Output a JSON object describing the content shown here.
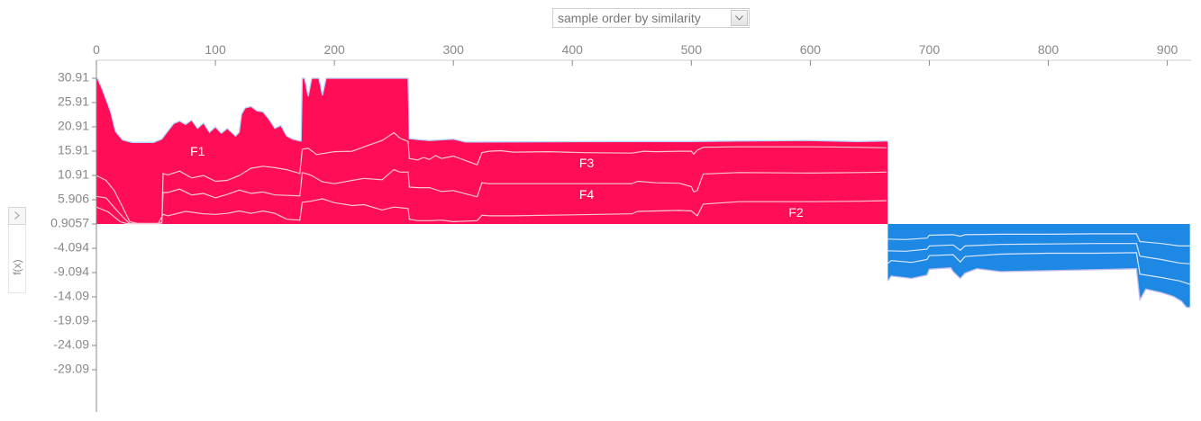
{
  "controls": {
    "sort_select": {
      "value": "sample order by similarity",
      "icon": "chevron-down-icon"
    },
    "side_toggle_icon": "chevron-right-icon",
    "output_label": "f(x)"
  },
  "chart_data": {
    "type": "area",
    "subtype": "stacked additive force plot",
    "title": "",
    "xlabel": "",
    "ylabel": "f(x)",
    "xlim": [
      0,
      920
    ],
    "ylim": [
      -34.09,
      30.91
    ],
    "grid": false,
    "x_ticks": [
      0,
      100,
      200,
      300,
      400,
      500,
      600,
      700,
      800,
      900
    ],
    "y_ticks": [
      "30.91",
      "25.91",
      "20.91",
      "15.91",
      "10.91",
      "5.906",
      "0.9057",
      "-4.094",
      "-9.094",
      "-14.09",
      "-19.09",
      "-24.09",
      "-29.09"
    ],
    "base_value": 0.9057,
    "colors": {
      "positive": "#ff0d57",
      "negative": "#1e88e5",
      "upper_edge": "#b7d6ff",
      "lower_edge": "#c5bce8",
      "separator": "#f8c5d3",
      "blue_separator": "#d8e6fb",
      "axis": "#888888"
    },
    "series_labels": [
      {
        "name": "F1",
        "x": 85,
        "y": 15.7
      },
      {
        "name": "F3",
        "x": 412,
        "y": 13.3
      },
      {
        "name": "F4",
        "x": 412,
        "y": 6.8
      },
      {
        "name": "F2",
        "x": 588,
        "y": 3.1
      }
    ],
    "output_curve": [
      [
        0,
        30.9
      ],
      [
        1,
        30.9
      ],
      [
        5,
        28.6
      ],
      [
        12,
        24.0
      ],
      [
        16,
        20.0
      ],
      [
        22,
        18.2
      ],
      [
        30,
        17.7
      ],
      [
        48,
        17.7
      ],
      [
        55,
        18.4
      ],
      [
        60,
        20.0
      ],
      [
        65,
        21.6
      ],
      [
        70,
        22.1
      ],
      [
        75,
        21.4
      ],
      [
        80,
        22.3
      ],
      [
        85,
        20.6
      ],
      [
        90,
        21.7
      ],
      [
        95,
        19.8
      ],
      [
        100,
        20.9
      ],
      [
        105,
        19.6
      ],
      [
        110,
        20.6
      ],
      [
        117,
        19.0
      ],
      [
        120,
        19.8
      ],
      [
        122,
        23.5
      ],
      [
        125,
        24.8
      ],
      [
        130,
        25.1
      ],
      [
        135,
        24.2
      ],
      [
        140,
        24.0
      ],
      [
        145,
        22.5
      ],
      [
        150,
        20.6
      ],
      [
        155,
        21.2
      ],
      [
        160,
        19.0
      ],
      [
        165,
        18.4
      ],
      [
        171,
        18.0
      ],
      [
        172,
        18.0
      ],
      [
        173,
        30.91
      ],
      [
        175,
        30.91
      ],
      [
        178,
        27.2
      ],
      [
        181,
        30.91
      ],
      [
        187,
        30.91
      ],
      [
        190,
        27.4
      ],
      [
        193,
        30.91
      ],
      [
        262,
        30.91
      ],
      [
        263,
        18.5
      ],
      [
        270,
        18.3
      ],
      [
        280,
        18.1
      ],
      [
        300,
        18.4
      ],
      [
        310,
        17.8
      ],
      [
        320,
        17.8
      ],
      [
        460,
        17.9
      ],
      [
        500,
        17.9
      ],
      [
        540,
        18.0
      ],
      [
        600,
        18.1
      ],
      [
        640,
        17.9
      ],
      [
        664,
        18.0
      ],
      [
        665,
        18.0
      ],
      [
        665.1,
        -10.8
      ],
      [
        668,
        -9.8
      ],
      [
        685,
        -10.3
      ],
      [
        698,
        -9.6
      ],
      [
        700,
        -8.4
      ],
      [
        718,
        -8.1
      ],
      [
        720,
        -8.9
      ],
      [
        726,
        -10.3
      ],
      [
        730,
        -9.2
      ],
      [
        740,
        -8.3
      ],
      [
        760,
        -8.9
      ],
      [
        800,
        -8.7
      ],
      [
        840,
        -8.5
      ],
      [
        874,
        -8.3
      ],
      [
        877,
        -14.7
      ],
      [
        882,
        -12.5
      ],
      [
        895,
        -13.2
      ],
      [
        905,
        -14.0
      ],
      [
        912,
        -15.0
      ],
      [
        916,
        -16.2
      ],
      [
        918,
        -16.3
      ],
      [
        919,
        -16.2
      ]
    ],
    "feature_boundaries": [
      {
        "name": "F3/F1",
        "points": [
          [
            0,
            10.9
          ],
          [
            8,
            9.9
          ],
          [
            15,
            7.8
          ],
          [
            22,
            4.4
          ],
          [
            28,
            1.4
          ],
          [
            35,
            1.0
          ],
          [
            52,
            1.0
          ],
          [
            55,
            1.2
          ],
          [
            56,
            11.3
          ],
          [
            60,
            11.0
          ],
          [
            70,
            11.8
          ],
          [
            80,
            10.4
          ],
          [
            90,
            10.9
          ],
          [
            100,
            9.7
          ],
          [
            110,
            9.9
          ],
          [
            120,
            10.9
          ],
          [
            130,
            12.4
          ],
          [
            140,
            12.8
          ],
          [
            150,
            12.5
          ],
          [
            160,
            12.1
          ],
          [
            171,
            11.3
          ],
          [
            173,
            16.3
          ],
          [
            178,
            16.5
          ],
          [
            185,
            15.2
          ],
          [
            200,
            15.8
          ],
          [
            215,
            15.9
          ],
          [
            225,
            16.8
          ],
          [
            240,
            18.1
          ],
          [
            250,
            19.7
          ],
          [
            255,
            18.6
          ],
          [
            262,
            17.9
          ],
          [
            263,
            14.4
          ],
          [
            270,
            14.1
          ],
          [
            275,
            14.6
          ],
          [
            280,
            14.2
          ],
          [
            285,
            15.0
          ],
          [
            290,
            14.4
          ],
          [
            300,
            14.9
          ],
          [
            320,
            13.1
          ],
          [
            324,
            15.6
          ],
          [
            330,
            15.9
          ],
          [
            340,
            16.0
          ],
          [
            350,
            15.7
          ],
          [
            380,
            15.8
          ],
          [
            410,
            15.6
          ],
          [
            450,
            15.5
          ],
          [
            460,
            15.9
          ],
          [
            470,
            15.8
          ],
          [
            490,
            15.9
          ],
          [
            500,
            15.9
          ],
          [
            502,
            15.3
          ],
          [
            505,
            16.1
          ],
          [
            510,
            16.7
          ],
          [
            540,
            16.8
          ],
          [
            600,
            16.8
          ],
          [
            640,
            16.7
          ],
          [
            664,
            16.6
          ]
        ]
      },
      {
        "name": "F4/F3",
        "points": [
          [
            0,
            6.6
          ],
          [
            8,
            6.3
          ],
          [
            15,
            4.3
          ],
          [
            22,
            2.4
          ],
          [
            28,
            1.0
          ],
          [
            50,
            1.0
          ],
          [
            55,
            1.1
          ],
          [
            56,
            7.4
          ],
          [
            60,
            7.4
          ],
          [
            70,
            8.1
          ],
          [
            80,
            6.9
          ],
          [
            90,
            7.2
          ],
          [
            100,
            6.3
          ],
          [
            110,
            7.0
          ],
          [
            120,
            7.9
          ],
          [
            130,
            7.2
          ],
          [
            140,
            7.5
          ],
          [
            150,
            6.9
          ],
          [
            160,
            6.8
          ],
          [
            171,
            6.7
          ],
          [
            173,
            11.5
          ],
          [
            180,
            11.0
          ],
          [
            190,
            9.6
          ],
          [
            200,
            9.2
          ],
          [
            215,
            9.9
          ],
          [
            225,
            10.3
          ],
          [
            240,
            10.0
          ],
          [
            250,
            12.1
          ],
          [
            255,
            11.6
          ],
          [
            262,
            11.6
          ],
          [
            263,
            8.5
          ],
          [
            270,
            8.4
          ],
          [
            280,
            8.4
          ],
          [
            290,
            7.6
          ],
          [
            300,
            7.8
          ],
          [
            320,
            6.5
          ],
          [
            324,
            9.4
          ],
          [
            330,
            9.2
          ],
          [
            350,
            9.2
          ],
          [
            400,
            9.2
          ],
          [
            450,
            9.2
          ],
          [
            455,
            9.7
          ],
          [
            470,
            9.4
          ],
          [
            490,
            9.3
          ],
          [
            500,
            8.6
          ],
          [
            502,
            7.5
          ],
          [
            505,
            7.8
          ],
          [
            510,
            11.2
          ],
          [
            540,
            11.5
          ],
          [
            600,
            11.4
          ],
          [
            640,
            11.5
          ],
          [
            664,
            11.6
          ]
        ]
      },
      {
        "name": "F2/F4",
        "points": [
          [
            0,
            4.4
          ],
          [
            10,
            3.4
          ],
          [
            20,
            1.4
          ],
          [
            25,
            1.0
          ],
          [
            52,
            1.0
          ],
          [
            56,
            2.9
          ],
          [
            60,
            2.6
          ],
          [
            75,
            3.5
          ],
          [
            90,
            3.0
          ],
          [
            100,
            2.9
          ],
          [
            110,
            3.1
          ],
          [
            120,
            3.6
          ],
          [
            130,
            3.1
          ],
          [
            140,
            3.6
          ],
          [
            150,
            3.1
          ],
          [
            160,
            1.9
          ],
          [
            171,
            1.7
          ],
          [
            173,
            5.4
          ],
          [
            180,
            5.6
          ],
          [
            190,
            6.1
          ],
          [
            200,
            5.3
          ],
          [
            215,
            4.7
          ],
          [
            225,
            4.9
          ],
          [
            240,
            3.8
          ],
          [
            250,
            4.4
          ],
          [
            262,
            4.1
          ],
          [
            263,
            1.9
          ],
          [
            270,
            1.6
          ],
          [
            280,
            1.6
          ],
          [
            290,
            1.7
          ],
          [
            300,
            1.4
          ],
          [
            320,
            1.6
          ],
          [
            324,
            2.7
          ],
          [
            330,
            2.6
          ],
          [
            350,
            2.6
          ],
          [
            400,
            2.8
          ],
          [
            450,
            3.0
          ],
          [
            455,
            3.5
          ],
          [
            470,
            3.6
          ],
          [
            490,
            3.7
          ],
          [
            500,
            3.6
          ],
          [
            505,
            2.6
          ],
          [
            510,
            5.0
          ],
          [
            540,
            5.5
          ],
          [
            600,
            5.5
          ],
          [
            640,
            5.6
          ],
          [
            664,
            5.7
          ]
        ]
      }
    ],
    "negative_boundaries": [
      {
        "name": "blue-1",
        "points": [
          [
            665.1,
            -2.2
          ],
          [
            680,
            -2.3
          ],
          [
            698,
            -2.0
          ],
          [
            700,
            -1.4
          ],
          [
            720,
            -1.3
          ],
          [
            726,
            -1.6
          ],
          [
            730,
            -1.3
          ],
          [
            760,
            -1.2
          ],
          [
            800,
            -1.2
          ],
          [
            840,
            -1.1
          ],
          [
            874,
            -1.1
          ],
          [
            877,
            -2.7
          ],
          [
            895,
            -3.1
          ],
          [
            910,
            -3.6
          ],
          [
            919,
            -3.6
          ]
        ]
      },
      {
        "name": "blue-2",
        "points": [
          [
            665.1,
            -4.6
          ],
          [
            680,
            -4.7
          ],
          [
            698,
            -4.3
          ],
          [
            700,
            -3.6
          ],
          [
            720,
            -3.4
          ],
          [
            726,
            -4.5
          ],
          [
            730,
            -3.6
          ],
          [
            760,
            -3.3
          ],
          [
            800,
            -3.2
          ],
          [
            840,
            -3.1
          ],
          [
            874,
            -3.1
          ],
          [
            877,
            -5.7
          ],
          [
            895,
            -6.4
          ],
          [
            910,
            -7.1
          ],
          [
            919,
            -7.3
          ]
        ]
      },
      {
        "name": "blue-3",
        "points": [
          [
            665.1,
            -7.2
          ],
          [
            668,
            -6.6
          ],
          [
            685,
            -7.0
          ],
          [
            698,
            -6.4
          ],
          [
            700,
            -5.6
          ],
          [
            720,
            -5.4
          ],
          [
            726,
            -6.9
          ],
          [
            730,
            -5.8
          ],
          [
            760,
            -5.3
          ],
          [
            800,
            -5.1
          ],
          [
            840,
            -5.1
          ],
          [
            874,
            -5.0
          ],
          [
            877,
            -9.4
          ],
          [
            895,
            -10.1
          ],
          [
            910,
            -10.8
          ],
          [
            919,
            -11.5
          ]
        ]
      }
    ]
  }
}
